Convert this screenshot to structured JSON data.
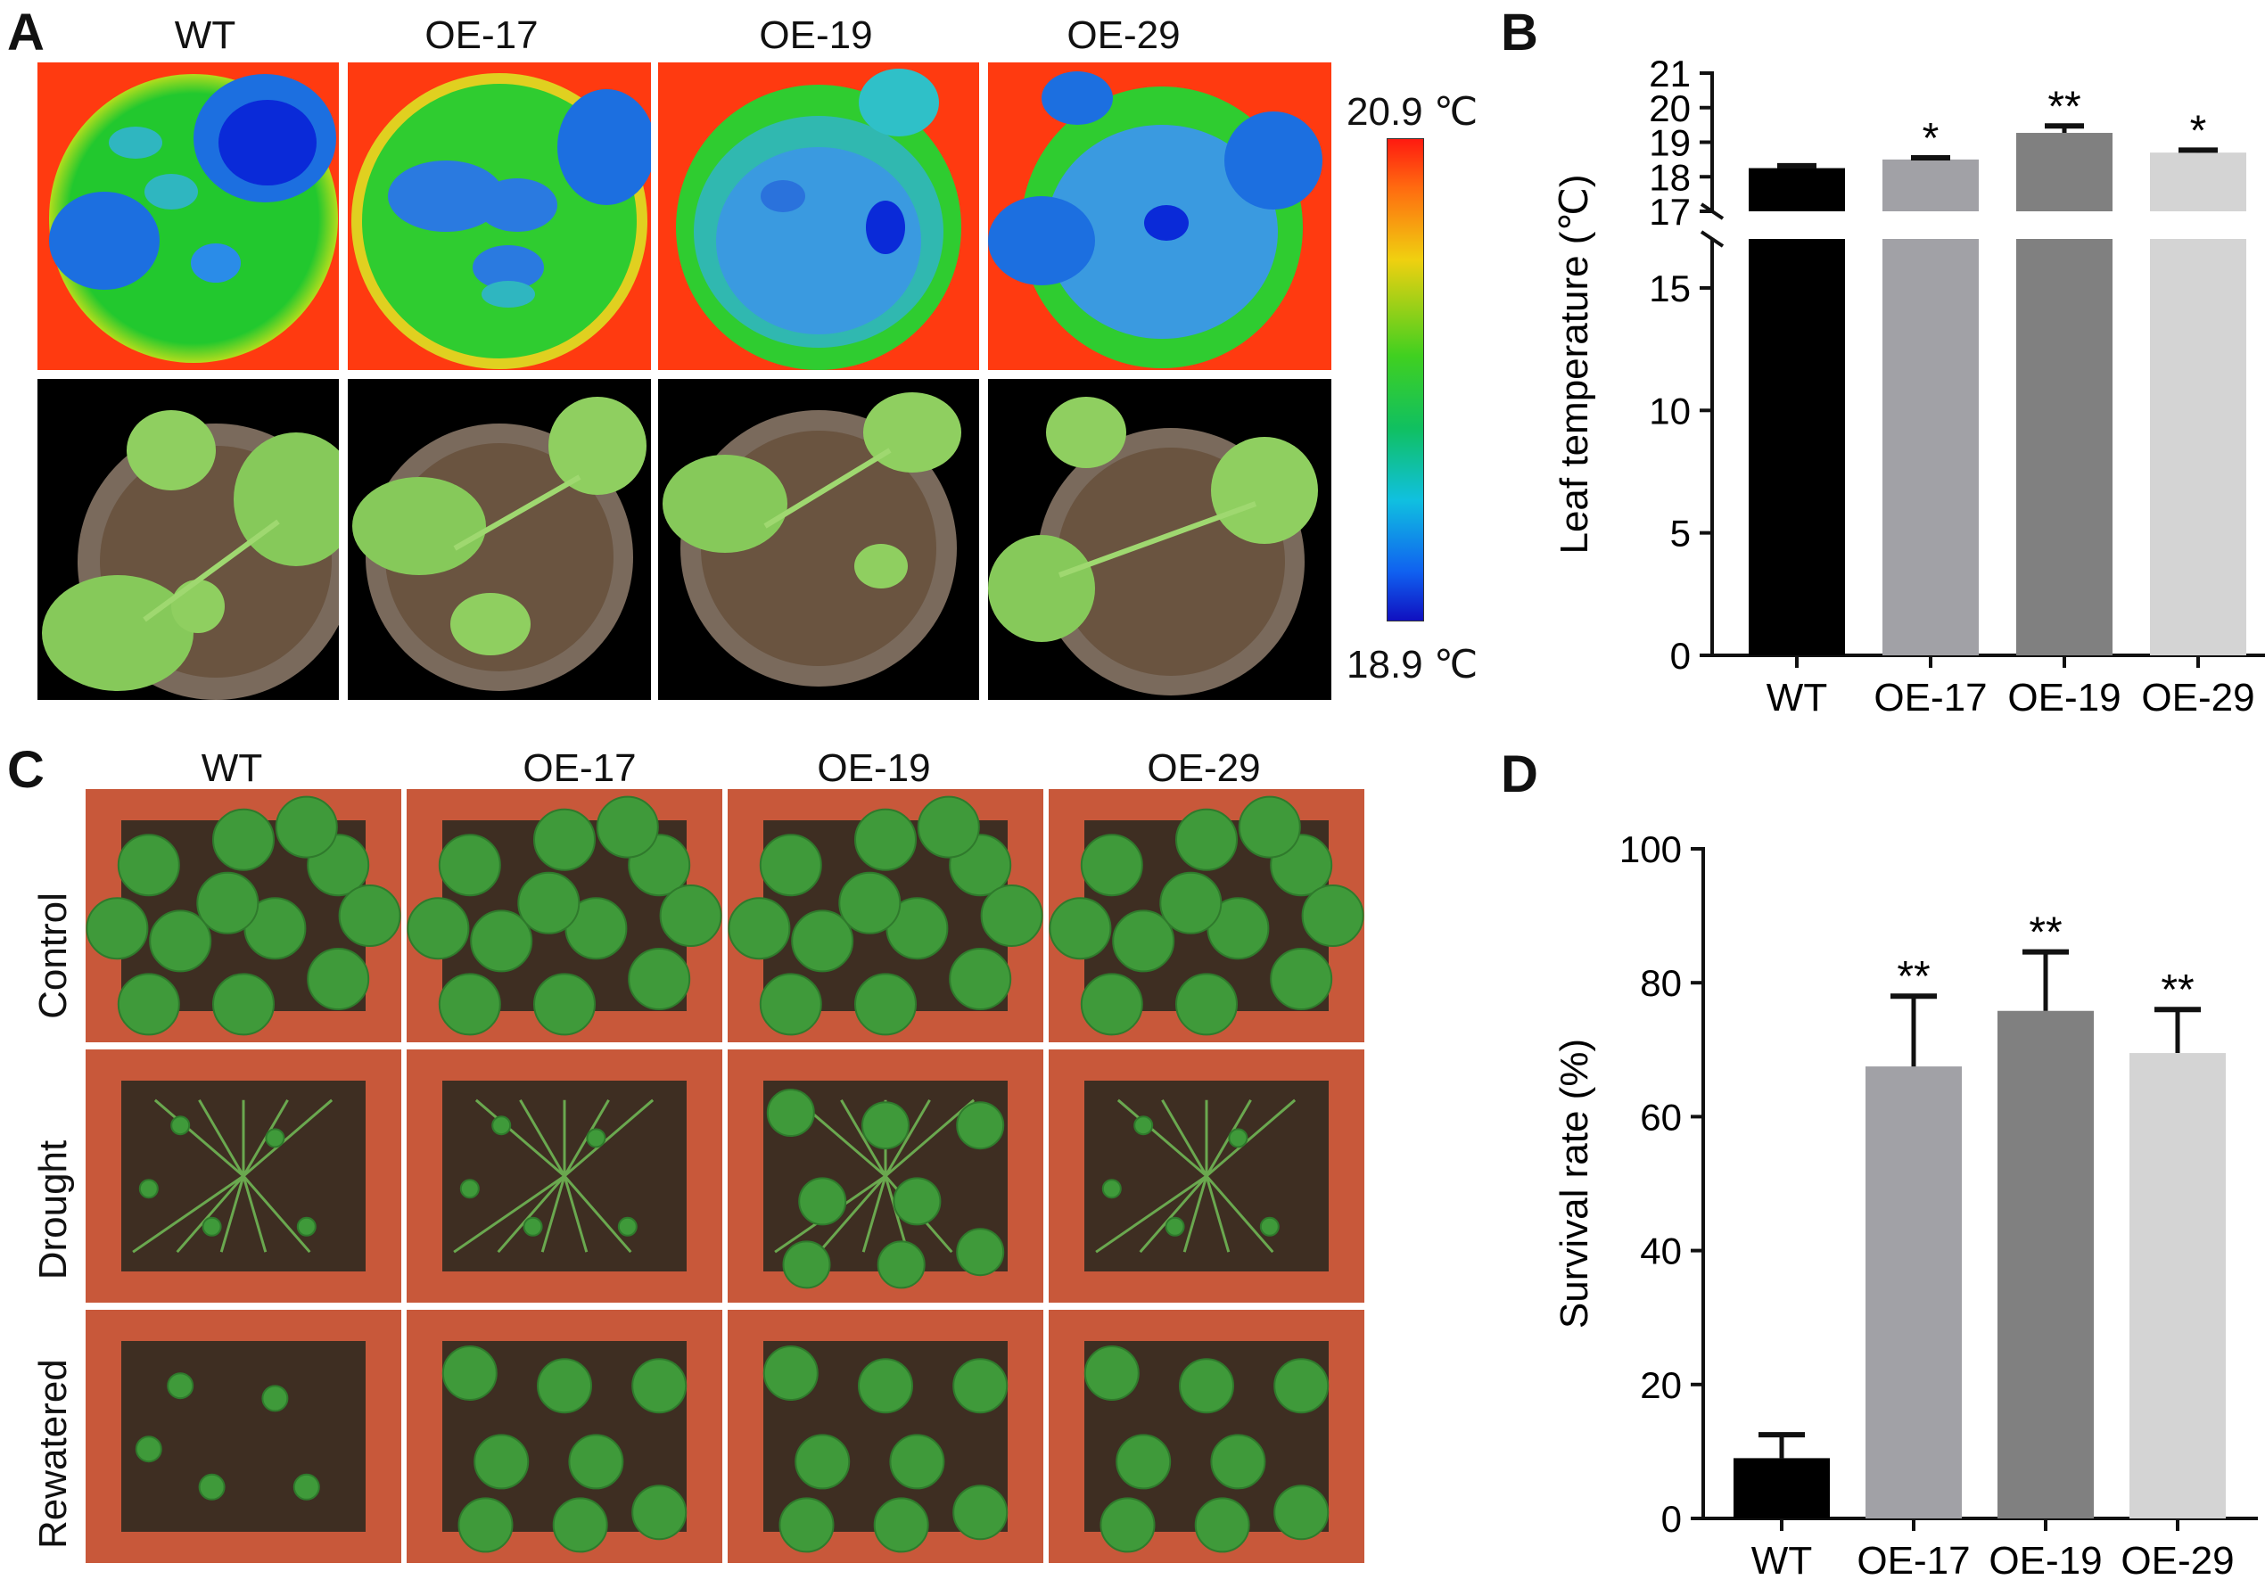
{
  "panels": {
    "A": {
      "letter": "A",
      "columns": [
        "WT",
        "OE-17",
        "OE-19",
        "OE-29"
      ],
      "scale_max": "20.9 ℃",
      "scale_min": "18.9 ℃",
      "colors": {
        "hot": "#ff3a10",
        "mid": "#22c82e",
        "cool": "#1c6fe0",
        "coldest": "#0a2ad8",
        "soil": "#6a5440",
        "leaf": "#86c95a",
        "black": "#000000"
      }
    },
    "B": {
      "letter": "B"
    },
    "C": {
      "letter": "C",
      "columns": [
        "WT",
        "OE-17",
        "OE-19",
        "OE-29"
      ],
      "rows": [
        "Control",
        "Drought",
        "Rewatered"
      ],
      "colors": {
        "pot": "#c8583a",
        "soil": "#3e2e22",
        "leaf": "#3f9a3a"
      }
    },
    "D": {
      "letter": "D"
    }
  },
  "chart_data": [
    {
      "panel": "B",
      "type": "bar",
      "categories": [
        "WT",
        "OE-17",
        "OE-19",
        "OE-29"
      ],
      "values": [
        18.25,
        18.5,
        19.27,
        18.7
      ],
      "errors": [
        0.07,
        0.05,
        0.2,
        0.07
      ],
      "significance": [
        "",
        "*",
        "**",
        "*"
      ],
      "bar_colors": [
        "#000000",
        "#a1a1a6",
        "#808080",
        "#d4d4d4"
      ],
      "ylabel": "Leaf temperature (℃)",
      "broken_axis": true,
      "lower_ticks": [
        "0",
        "5",
        "10",
        "15"
      ],
      "upper_ticks": [
        "17",
        "18",
        "19",
        "20",
        "21"
      ],
      "ylim_lower": [
        0,
        17
      ],
      "ylim_upper": [
        17,
        21
      ],
      "grid": false
    },
    {
      "panel": "D",
      "type": "bar",
      "categories": [
        "WT",
        "OE-17",
        "OE-19",
        "OE-29"
      ],
      "values": [
        9,
        67.5,
        75.8,
        69.5
      ],
      "errors": [
        3.5,
        10.5,
        8.8,
        6.5
      ],
      "significance": [
        "",
        "**",
        "**",
        "**"
      ],
      "bar_colors": [
        "#000000",
        "#a1a1a6",
        "#808080",
        "#d4d4d4"
      ],
      "ylabel": "Survival rate (%)",
      "yticks": [
        "0",
        "20",
        "40",
        "60",
        "80",
        "100"
      ],
      "ylim": [
        0,
        100
      ],
      "grid": false
    }
  ]
}
